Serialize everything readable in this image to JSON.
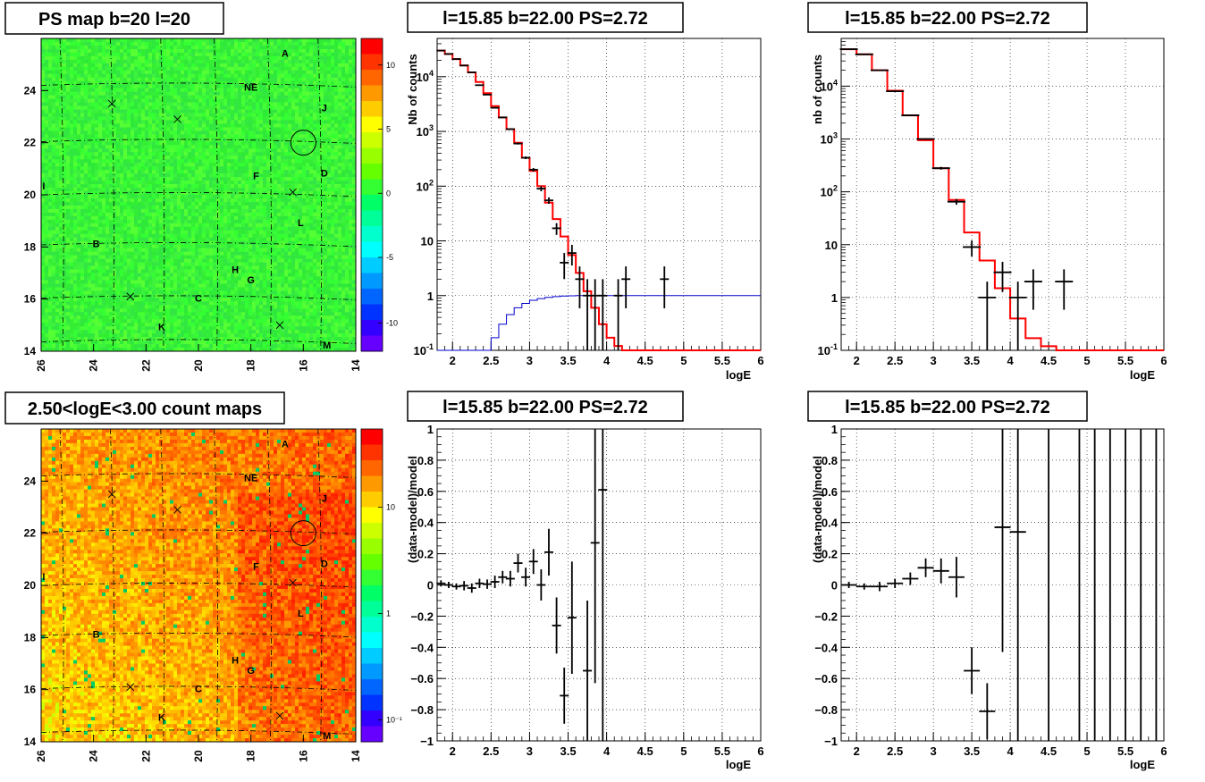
{
  "panels": {
    "map1": {
      "title": "PS map b=20 l=20",
      "xticks": [
        "26",
        "24",
        "22",
        "20",
        "18",
        "16",
        "14"
      ],
      "yticks": [
        "24",
        "22",
        "20",
        "18",
        "16",
        "14"
      ],
      "colorbar": {
        "labels": [
          "10",
          "5",
          "0",
          "-5",
          "-10"
        ],
        "colors": [
          "#ff0000",
          "#ff3300",
          "#ff6600",
          "#ff9900",
          "#ffcc00",
          "#ffff00",
          "#ccff00",
          "#99ff00",
          "#66ff00",
          "#33ff33",
          "#00ff66",
          "#00ff99",
          "#00ffcc",
          "#00ffff",
          "#00ccff",
          "#0099ff",
          "#0066ff",
          "#0033ff",
          "#3300ff",
          "#6600ff"
        ]
      },
      "sources": [
        {
          "label": "A",
          "l": 16.7,
          "b": 25.3
        },
        {
          "label": "NE",
          "l": 18.0,
          "b": 24.0
        },
        {
          "label": "J",
          "l": 15.2,
          "b": 23.2
        },
        {
          "label": "F",
          "l": 17.8,
          "b": 20.6
        },
        {
          "label": "D",
          "l": 15.2,
          "b": 20.7
        },
        {
          "label": "I",
          "l": 25.9,
          "b": 20.2
        },
        {
          "label": "L",
          "l": 16.1,
          "b": 18.8
        },
        {
          "label": "B",
          "l": 23.9,
          "b": 18.0
        },
        {
          "label": "H",
          "l": 18.6,
          "b": 17.0
        },
        {
          "label": "G",
          "l": 18.0,
          "b": 16.6
        },
        {
          "label": "C",
          "l": 20.0,
          "b": 15.9
        },
        {
          "label": "K",
          "l": 21.4,
          "b": 14.8
        },
        {
          "label": "M",
          "l": 15.1,
          "b": 14.1
        }
      ],
      "crosses": [
        {
          "l": 23.3,
          "b": 23.5
        },
        {
          "l": 20.8,
          "b": 22.9
        },
        {
          "l": 16.4,
          "b": 20.1
        },
        {
          "l": 22.6,
          "b": 16.1
        },
        {
          "l": 16.9,
          "b": 15.0
        }
      ],
      "circle": {
        "l": 16.0,
        "b": 22.0
      }
    },
    "map2": {
      "title": "2.50<logE<3.00 count maps",
      "xticks": [
        "26",
        "24",
        "22",
        "20",
        "18",
        "16",
        "14"
      ],
      "yticks": [
        "24",
        "22",
        "20",
        "18",
        "16",
        "14"
      ],
      "colorbar": {
        "labels": [
          "10",
          "1",
          "10⁻¹"
        ],
        "colors": [
          "#ff0000",
          "#ff3300",
          "#ff6600",
          "#ff9900",
          "#ffcc00",
          "#ffff00",
          "#ccff00",
          "#99ff00",
          "#66ff00",
          "#33ff33",
          "#00ff66",
          "#00ff99",
          "#00ffcc",
          "#00ffff",
          "#00ccff",
          "#0099ff",
          "#0066ff",
          "#0033ff",
          "#3300ff",
          "#6600ff"
        ]
      }
    },
    "spec1": {
      "title": "l=15.85 b=22.00 PS=2.72",
      "xlabel": "logE",
      "ylabel": "Nb of counts"
    },
    "spec2": {
      "title": "l=15.85 b=22.00 PS=2.72",
      "xlabel": "logE",
      "ylabel": "nb of counts"
    },
    "res1": {
      "title": "l=15.85 b=22.00 PS=2.72",
      "xlabel": "logE",
      "ylabel": "(data-model)/model"
    },
    "res2": {
      "title": "l=15.85 b=22.00 PS=2.72",
      "xlabel": "logE",
      "ylabel": "(data-model)/model"
    }
  },
  "chart_data": [
    {
      "type": "heatmap",
      "title": "PS map b=20 l=20",
      "xlim": [
        26,
        14
      ],
      "ylim": [
        14,
        26
      ],
      "zlim": [
        -12,
        12
      ],
      "description_value": "mostly near 0 (green)"
    },
    {
      "type": "line",
      "title": "l=15.85 b=22.00 PS=2.72",
      "xlabel": "logE",
      "ylabel": "Nb of counts",
      "xlim": [
        1.8,
        6
      ],
      "ylim": [
        0.1,
        50000
      ],
      "log_y": true,
      "grid": true,
      "series": [
        {
          "color": "#000000",
          "points": [
            [
              1.85,
              30000
            ],
            [
              1.95,
              26000
            ],
            [
              2.05,
              21000
            ],
            [
              2.15,
              16000
            ],
            [
              2.25,
              12000
            ],
            [
              2.35,
              7000
            ],
            [
              2.45,
              4700
            ],
            [
              2.55,
              2700
            ],
            [
              2.65,
              1800
            ],
            [
              2.75,
              1100
            ],
            [
              2.85,
              600
            ],
            [
              2.95,
              330
            ],
            [
              3.05,
              200
            ],
            [
              3.15,
              90
            ],
            [
              3.25,
              55
            ],
            [
              3.35,
              17
            ],
            [
              3.45,
              4
            ],
            [
              3.55,
              6
            ],
            [
              3.65,
              2
            ],
            [
              3.75,
              1
            ],
            [
              3.85,
              1
            ],
            [
              3.95,
              1
            ],
            [
              4.15,
              1
            ],
            [
              4.25,
              2
            ],
            [
              4.75,
              2
            ]
          ]
        },
        {
          "color": "#ff0000",
          "steps": [
            [
              1.8,
              30000
            ],
            [
              1.9,
              26000
            ],
            [
              2.0,
              21000
            ],
            [
              2.1,
              16000
            ],
            [
              2.2,
              12000
            ],
            [
              2.3,
              8000
            ],
            [
              2.4,
              5000
            ],
            [
              2.5,
              2900
            ],
            [
              2.6,
              1800
            ],
            [
              2.7,
              1100
            ],
            [
              2.8,
              620
            ],
            [
              2.9,
              330
            ],
            [
              3.0,
              190
            ],
            [
              3.1,
              100
            ],
            [
              3.2,
              50
            ],
            [
              3.3,
              25
            ],
            [
              3.4,
              12
            ],
            [
              3.5,
              5.5
            ],
            [
              3.6,
              2.6
            ],
            [
              3.7,
              1.2
            ],
            [
              3.8,
              0.6
            ],
            [
              3.9,
              0.3
            ],
            [
              4.0,
              0.17
            ],
            [
              4.1,
              0.12
            ],
            [
              4.2,
              0.1
            ],
            [
              6,
              0.1
            ]
          ]
        },
        {
          "color": "#0000cc",
          "steps": [
            [
              1.8,
              0.01
            ],
            [
              2.4,
              0.1
            ],
            [
              2.5,
              0.17
            ],
            [
              2.6,
              0.3
            ],
            [
              2.7,
              0.45
            ],
            [
              2.8,
              0.6
            ],
            [
              2.9,
              0.72
            ],
            [
              3.0,
              0.82
            ],
            [
              3.1,
              0.88
            ],
            [
              3.2,
              0.93
            ],
            [
              3.3,
              0.96
            ],
            [
              3.4,
              0.98
            ],
            [
              3.5,
              0.99
            ],
            [
              3.6,
              1.0
            ],
            [
              6,
              1.0
            ]
          ]
        }
      ]
    },
    {
      "type": "line",
      "title": "l=15.85 b=22.00 PS=2.72",
      "xlabel": "logE",
      "ylabel": "nb of counts",
      "xlim": [
        1.8,
        6
      ],
      "ylim": [
        0.1,
        80000
      ],
      "log_y": true,
      "grid": true,
      "series": [
        {
          "color": "#000000",
          "points": [
            [
              1.9,
              50000
            ],
            [
              2.1,
              40000
            ],
            [
              2.3,
              20000
            ],
            [
              2.5,
              8000
            ],
            [
              2.7,
              2800
            ],
            [
              2.9,
              1000
            ],
            [
              3.1,
              280
            ],
            [
              3.3,
              65
            ],
            [
              3.5,
              9
            ],
            [
              3.7,
              1
            ],
            [
              3.9,
              3
            ],
            [
              4.1,
              1
            ],
            [
              4.3,
              2
            ],
            [
              4.7,
              2
            ]
          ]
        },
        {
          "color": "#ff0000",
          "steps": [
            [
              1.8,
              50000
            ],
            [
              2.0,
              40000
            ],
            [
              2.2,
              20000
            ],
            [
              2.4,
              8200
            ],
            [
              2.6,
              2800
            ],
            [
              2.8,
              950
            ],
            [
              3.0,
              280
            ],
            [
              3.2,
              70
            ],
            [
              3.4,
              17
            ],
            [
              3.6,
              5
            ],
            [
              3.8,
              1.5
            ],
            [
              4.0,
              0.4
            ],
            [
              4.2,
              0.17
            ],
            [
              4.4,
              0.12
            ],
            [
              4.6,
              0.1
            ],
            [
              6,
              0.1
            ]
          ]
        }
      ]
    },
    {
      "type": "heatmap",
      "title": "2.50<logE<3.00 count maps",
      "xlim": [
        26,
        14
      ],
      "ylim": [
        14,
        26
      ],
      "zlim": [
        0.05,
        50
      ],
      "log_z": true
    },
    {
      "type": "scatter",
      "title": "l=15.85 b=22.00 PS=2.72",
      "xlabel": "logE",
      "ylabel": "(data-model)/model",
      "xlim": [
        1.8,
        6
      ],
      "ylim": [
        -1,
        1
      ],
      "grid": true,
      "points": [
        {
          "x": 1.85,
          "y": 0.01,
          "e": 0.02
        },
        {
          "x": 1.95,
          "y": 0.0,
          "e": 0.02
        },
        {
          "x": 2.05,
          "y": -0.01,
          "e": 0.02
        },
        {
          "x": 2.15,
          "y": -0.005,
          "e": 0.03
        },
        {
          "x": 2.25,
          "y": -0.02,
          "e": 0.03
        },
        {
          "x": 2.35,
          "y": 0.01,
          "e": 0.03
        },
        {
          "x": 2.45,
          "y": 0.005,
          "e": 0.03
        },
        {
          "x": 2.55,
          "y": 0.02,
          "e": 0.04
        },
        {
          "x": 2.65,
          "y": 0.05,
          "e": 0.04
        },
        {
          "x": 2.75,
          "y": 0.04,
          "e": 0.05
        },
        {
          "x": 2.85,
          "y": 0.14,
          "e": 0.06
        },
        {
          "x": 2.95,
          "y": 0.05,
          "e": 0.06
        },
        {
          "x": 3.05,
          "y": 0.15,
          "e": 0.08
        },
        {
          "x": 3.15,
          "y": 0.0,
          "e": 0.1
        },
        {
          "x": 3.25,
          "y": 0.21,
          "e": 0.15
        },
        {
          "x": 3.35,
          "y": -0.26,
          "e": 0.18
        },
        {
          "x": 3.45,
          "y": -0.71,
          "e": 0.18
        },
        {
          "x": 3.55,
          "y": -0.21,
          "e": 0.36
        },
        {
          "x": 3.75,
          "y": -0.55,
          "e": 0.45
        },
        {
          "x": 3.85,
          "y": 0.27,
          "e": 0.9
        },
        {
          "x": 3.95,
          "y": 0.61,
          "e": 1.7
        }
      ]
    },
    {
      "type": "scatter",
      "title": "l=15.85 b=22.00 PS=2.72",
      "xlabel": "logE",
      "ylabel": "(data-model)/model",
      "xlim": [
        1.8,
        6
      ],
      "ylim": [
        -1,
        1
      ],
      "grid": true,
      "points": [
        {
          "x": 1.9,
          "y": 0.0,
          "e": 0.02
        },
        {
          "x": 2.1,
          "y": -0.01,
          "e": 0.02
        },
        {
          "x": 2.3,
          "y": -0.01,
          "e": 0.03
        },
        {
          "x": 2.5,
          "y": 0.01,
          "e": 0.03
        },
        {
          "x": 2.7,
          "y": 0.04,
          "e": 0.04
        },
        {
          "x": 2.9,
          "y": 0.11,
          "e": 0.06
        },
        {
          "x": 3.1,
          "y": 0.09,
          "e": 0.08
        },
        {
          "x": 3.3,
          "y": 0.05,
          "e": 0.13
        },
        {
          "x": 3.5,
          "y": -0.55,
          "e": 0.15
        },
        {
          "x": 3.7,
          "y": -0.81,
          "e": 0.18
        },
        {
          "x": 3.9,
          "y": 0.37,
          "e": 0.8
        },
        {
          "x": 4.1,
          "y": 0.34,
          "e": 1.5
        },
        {
          "x": 4.5,
          "y": 0,
          "e": 5
        },
        {
          "x": 4.9,
          "y": 0,
          "e": 5
        },
        {
          "x": 5.1,
          "y": 0,
          "e": 5
        },
        {
          "x": 5.3,
          "y": 0,
          "e": 5
        },
        {
          "x": 5.5,
          "y": 0,
          "e": 5
        },
        {
          "x": 5.7,
          "y": 0,
          "e": 5
        },
        {
          "x": 5.9,
          "y": 0,
          "e": 5
        }
      ]
    }
  ]
}
